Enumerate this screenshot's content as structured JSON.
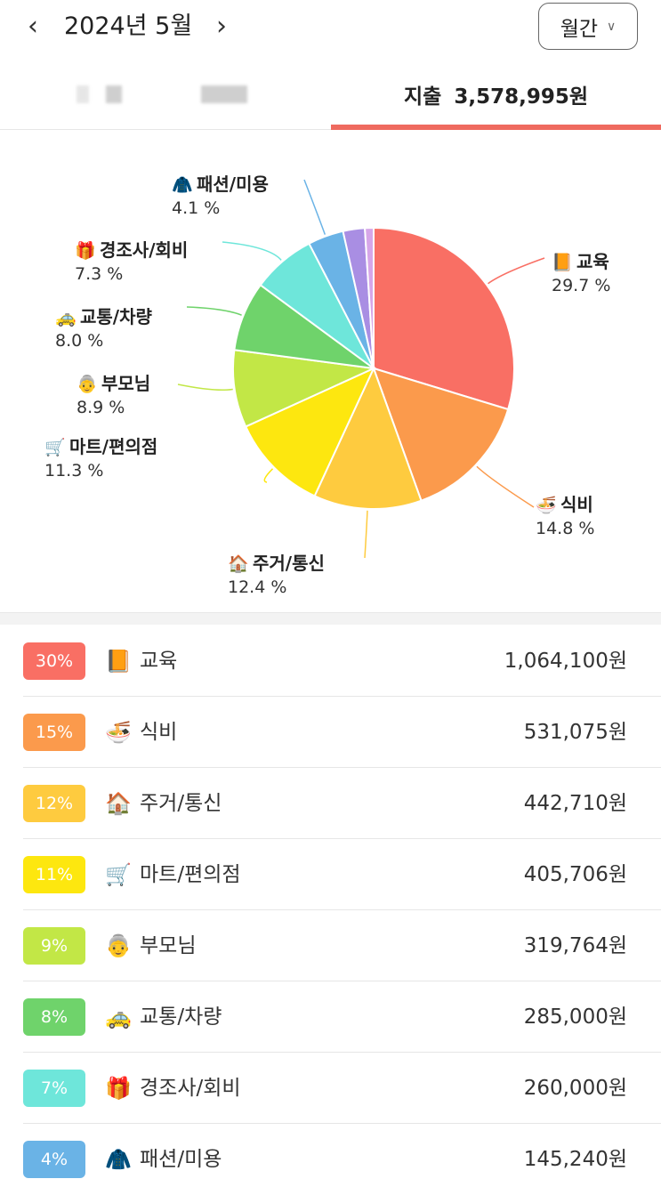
{
  "header": {
    "prev_icon": "‹",
    "month": "2024년 5월",
    "next_icon": "›",
    "period": "월간",
    "period_chevron": "∨"
  },
  "tabs": {
    "expense_label": "지출",
    "expense_amount": "3,578,995원"
  },
  "colors": {
    "accent": "#ef6a5f"
  },
  "chart_data": {
    "type": "pie",
    "slices": [
      {
        "name": "교육",
        "icon": "📙",
        "percent_label": "29.7 %",
        "value": 29.7,
        "color": "#f96f64"
      },
      {
        "name": "식비",
        "icon": "🍜",
        "percent_label": "14.8 %",
        "value": 14.8,
        "color": "#fb9a4c"
      },
      {
        "name": "주거/통신",
        "icon": "🏠",
        "percent_label": "12.4 %",
        "value": 12.4,
        "color": "#fecb3f"
      },
      {
        "name": "마트/편의점",
        "icon": "🛒",
        "percent_label": "11.3 %",
        "value": 11.3,
        "color": "#fde70f"
      },
      {
        "name": "부모님",
        "icon": "👵",
        "percent_label": "8.9 %",
        "value": 8.9,
        "color": "#c2e746"
      },
      {
        "name": "교통/차량",
        "icon": "🚕",
        "percent_label": "8.0 %",
        "value": 8.0,
        "color": "#6fd36b"
      },
      {
        "name": "경조사/회비",
        "icon": "🎁",
        "percent_label": "7.3 %",
        "value": 7.3,
        "color": "#6ee6da"
      },
      {
        "name": "패션/미용",
        "icon": "🧥",
        "percent_label": "4.1 %",
        "value": 4.1,
        "color": "#6ab3e6"
      },
      {
        "name": "",
        "icon": "",
        "percent_label": "",
        "value": 2.5,
        "color": "#a98ee3"
      },
      {
        "name": "",
        "icon": "",
        "percent_label": "",
        "value": 1.0,
        "color": "#d6a6e8"
      }
    ]
  },
  "list": [
    {
      "badge": "30%",
      "icon": "📙",
      "name": "교육",
      "amount": "1,064,100원",
      "color": "#f96f64"
    },
    {
      "badge": "15%",
      "icon": "🍜",
      "name": "식비",
      "amount": "531,075원",
      "color": "#fb9a4c"
    },
    {
      "badge": "12%",
      "icon": "🏠",
      "name": "주거/통신",
      "amount": "442,710원",
      "color": "#fecb3f"
    },
    {
      "badge": "11%",
      "icon": "🛒",
      "name": "마트/편의점",
      "amount": "405,706원",
      "color": "#fde70f"
    },
    {
      "badge": "9%",
      "icon": "👵",
      "name": "부모님",
      "amount": "319,764원",
      "color": "#c2e746"
    },
    {
      "badge": "8%",
      "icon": "🚕",
      "name": "교통/차량",
      "amount": "285,000원",
      "color": "#6fd36b"
    },
    {
      "badge": "7%",
      "icon": "🎁",
      "name": "경조사/회비",
      "amount": "260,000원",
      "color": "#6ee6da"
    },
    {
      "badge": "4%",
      "icon": "🧥",
      "name": "패션/미용",
      "amount": "145,240원",
      "color": "#6ab3e6"
    }
  ]
}
